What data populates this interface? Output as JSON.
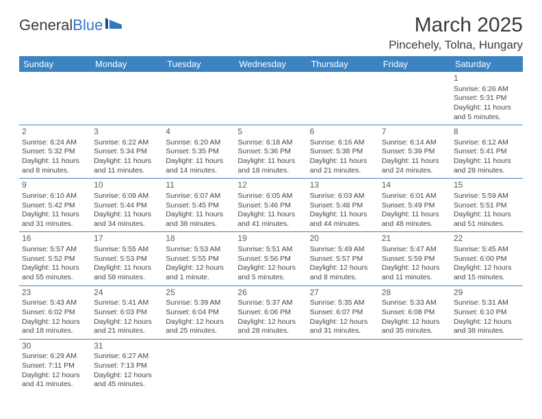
{
  "logo": {
    "text1": "General",
    "text2": "Blue"
  },
  "title": "March 2025",
  "location": "Pincehely, Tolna, Hungary",
  "colors": {
    "header_bg": "#3b83c2",
    "header_text": "#ffffff",
    "border": "#3b83c2",
    "body_text": "#414141",
    "logo_accent": "#2f78bf"
  },
  "day_headers": [
    "Sunday",
    "Monday",
    "Tuesday",
    "Wednesday",
    "Thursday",
    "Friday",
    "Saturday"
  ],
  "weeks": [
    [
      null,
      null,
      null,
      null,
      null,
      null,
      {
        "n": "1",
        "sr": "6:26 AM",
        "ss": "5:31 PM",
        "dl": "11 hours and 5 minutes."
      }
    ],
    [
      {
        "n": "2",
        "sr": "6:24 AM",
        "ss": "5:32 PM",
        "dl": "11 hours and 8 minutes."
      },
      {
        "n": "3",
        "sr": "6:22 AM",
        "ss": "5:34 PM",
        "dl": "11 hours and 11 minutes."
      },
      {
        "n": "4",
        "sr": "6:20 AM",
        "ss": "5:35 PM",
        "dl": "11 hours and 14 minutes."
      },
      {
        "n": "5",
        "sr": "6:18 AM",
        "ss": "5:36 PM",
        "dl": "11 hours and 18 minutes."
      },
      {
        "n": "6",
        "sr": "6:16 AM",
        "ss": "5:38 PM",
        "dl": "11 hours and 21 minutes."
      },
      {
        "n": "7",
        "sr": "6:14 AM",
        "ss": "5:39 PM",
        "dl": "11 hours and 24 minutes."
      },
      {
        "n": "8",
        "sr": "6:12 AM",
        "ss": "5:41 PM",
        "dl": "11 hours and 28 minutes."
      }
    ],
    [
      {
        "n": "9",
        "sr": "6:10 AM",
        "ss": "5:42 PM",
        "dl": "11 hours and 31 minutes."
      },
      {
        "n": "10",
        "sr": "6:09 AM",
        "ss": "5:44 PM",
        "dl": "11 hours and 34 minutes."
      },
      {
        "n": "11",
        "sr": "6:07 AM",
        "ss": "5:45 PM",
        "dl": "11 hours and 38 minutes."
      },
      {
        "n": "12",
        "sr": "6:05 AM",
        "ss": "5:46 PM",
        "dl": "11 hours and 41 minutes."
      },
      {
        "n": "13",
        "sr": "6:03 AM",
        "ss": "5:48 PM",
        "dl": "11 hours and 44 minutes."
      },
      {
        "n": "14",
        "sr": "6:01 AM",
        "ss": "5:49 PM",
        "dl": "11 hours and 48 minutes."
      },
      {
        "n": "15",
        "sr": "5:59 AM",
        "ss": "5:51 PM",
        "dl": "11 hours and 51 minutes."
      }
    ],
    [
      {
        "n": "16",
        "sr": "5:57 AM",
        "ss": "5:52 PM",
        "dl": "11 hours and 55 minutes."
      },
      {
        "n": "17",
        "sr": "5:55 AM",
        "ss": "5:53 PM",
        "dl": "11 hours and 58 minutes."
      },
      {
        "n": "18",
        "sr": "5:53 AM",
        "ss": "5:55 PM",
        "dl": "12 hours and 1 minute."
      },
      {
        "n": "19",
        "sr": "5:51 AM",
        "ss": "5:56 PM",
        "dl": "12 hours and 5 minutes."
      },
      {
        "n": "20",
        "sr": "5:49 AM",
        "ss": "5:57 PM",
        "dl": "12 hours and 8 minutes."
      },
      {
        "n": "21",
        "sr": "5:47 AM",
        "ss": "5:59 PM",
        "dl": "12 hours and 11 minutes."
      },
      {
        "n": "22",
        "sr": "5:45 AM",
        "ss": "6:00 PM",
        "dl": "12 hours and 15 minutes."
      }
    ],
    [
      {
        "n": "23",
        "sr": "5:43 AM",
        "ss": "6:02 PM",
        "dl": "12 hours and 18 minutes."
      },
      {
        "n": "24",
        "sr": "5:41 AM",
        "ss": "6:03 PM",
        "dl": "12 hours and 21 minutes."
      },
      {
        "n": "25",
        "sr": "5:39 AM",
        "ss": "6:04 PM",
        "dl": "12 hours and 25 minutes."
      },
      {
        "n": "26",
        "sr": "5:37 AM",
        "ss": "6:06 PM",
        "dl": "12 hours and 28 minutes."
      },
      {
        "n": "27",
        "sr": "5:35 AM",
        "ss": "6:07 PM",
        "dl": "12 hours and 31 minutes."
      },
      {
        "n": "28",
        "sr": "5:33 AM",
        "ss": "6:08 PM",
        "dl": "12 hours and 35 minutes."
      },
      {
        "n": "29",
        "sr": "5:31 AM",
        "ss": "6:10 PM",
        "dl": "12 hours and 38 minutes."
      }
    ],
    [
      {
        "n": "30",
        "sr": "6:29 AM",
        "ss": "7:11 PM",
        "dl": "12 hours and 41 minutes."
      },
      {
        "n": "31",
        "sr": "6:27 AM",
        "ss": "7:13 PM",
        "dl": "12 hours and 45 minutes."
      },
      null,
      null,
      null,
      null,
      null
    ]
  ],
  "labels": {
    "sunrise": "Sunrise:",
    "sunset": "Sunset:",
    "daylight": "Daylight:"
  }
}
